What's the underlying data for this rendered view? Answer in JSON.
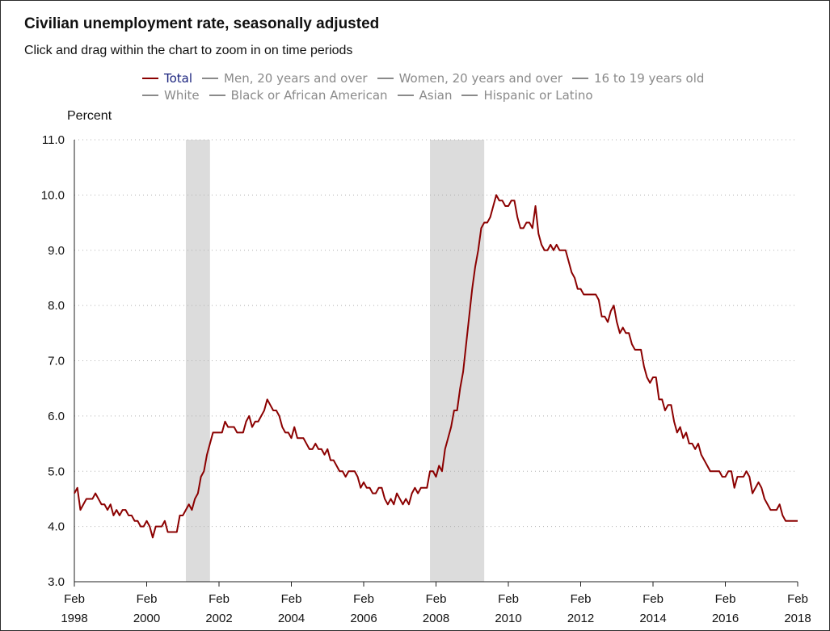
{
  "chart_data": {
    "type": "line",
    "title": "Civilian unemployment rate, seasonally adjusted",
    "subtitle": "Click and drag within the chart to zoom in on time periods",
    "ylabel": "Percent",
    "xlabel": "",
    "ylim": [
      3.0,
      11.0
    ],
    "y_ticks": [
      "3.0",
      "4.0",
      "5.0",
      "6.0",
      "7.0",
      "8.0",
      "9.0",
      "10.0",
      "11.0"
    ],
    "x_ticks": [
      {
        "month": "Feb",
        "year": "1998"
      },
      {
        "month": "Feb",
        "year": "2000"
      },
      {
        "month": "Feb",
        "year": "2002"
      },
      {
        "month": "Feb",
        "year": "2004"
      },
      {
        "month": "Feb",
        "year": "2006"
      },
      {
        "month": "Feb",
        "year": "2008"
      },
      {
        "month": "Feb",
        "year": "2010"
      },
      {
        "month": "Feb",
        "year": "2012"
      },
      {
        "month": "Feb",
        "year": "2014"
      },
      {
        "month": "Feb",
        "year": "2016"
      },
      {
        "month": "Feb",
        "year": "2018"
      }
    ],
    "legend": {
      "row1": [
        {
          "label": "Total",
          "active": true
        },
        {
          "label": "Men, 20 years and over",
          "active": false
        },
        {
          "label": "Women, 20 years and over",
          "active": false
        },
        {
          "label": "16 to 19 years old",
          "active": false
        }
      ],
      "row2": [
        {
          "label": "White",
          "active": false
        },
        {
          "label": "Black or African American",
          "active": false
        },
        {
          "label": "Asian",
          "active": false
        },
        {
          "label": "Hispanic or Latino",
          "active": false
        }
      ]
    },
    "recessions": [
      {
        "start": "2001-03",
        "end": "2001-11"
      },
      {
        "start": "2007-12",
        "end": "2009-06"
      }
    ],
    "series": [
      {
        "name": "Total",
        "color": "#8b0000",
        "start": "1998-02",
        "values": [
          4.6,
          4.7,
          4.3,
          4.4,
          4.5,
          4.5,
          4.5,
          4.6,
          4.5,
          4.4,
          4.4,
          4.3,
          4.4,
          4.2,
          4.3,
          4.2,
          4.3,
          4.3,
          4.2,
          4.2,
          4.1,
          4.1,
          4.0,
          4.0,
          4.1,
          4.0,
          3.8,
          4.0,
          4.0,
          4.0,
          4.1,
          3.9,
          3.9,
          3.9,
          3.9,
          4.2,
          4.2,
          4.3,
          4.4,
          4.3,
          4.5,
          4.6,
          4.9,
          5.0,
          5.3,
          5.5,
          5.7,
          5.7,
          5.7,
          5.7,
          5.9,
          5.8,
          5.8,
          5.8,
          5.7,
          5.7,
          5.7,
          5.9,
          6.0,
          5.8,
          5.9,
          5.9,
          6.0,
          6.1,
          6.3,
          6.2,
          6.1,
          6.1,
          6.0,
          5.8,
          5.7,
          5.7,
          5.6,
          5.8,
          5.6,
          5.6,
          5.6,
          5.5,
          5.4,
          5.4,
          5.5,
          5.4,
          5.4,
          5.3,
          5.4,
          5.2,
          5.2,
          5.1,
          5.0,
          5.0,
          4.9,
          5.0,
          5.0,
          5.0,
          4.9,
          4.7,
          4.8,
          4.7,
          4.7,
          4.6,
          4.6,
          4.7,
          4.7,
          4.5,
          4.4,
          4.5,
          4.4,
          4.6,
          4.5,
          4.4,
          4.5,
          4.4,
          4.6,
          4.7,
          4.6,
          4.7,
          4.7,
          4.7,
          5.0,
          5.0,
          4.9,
          5.1,
          5.0,
          5.4,
          5.6,
          5.8,
          6.1,
          6.1,
          6.5,
          6.8,
          7.3,
          7.8,
          8.3,
          8.7,
          9.0,
          9.4,
          9.5,
          9.5,
          9.6,
          9.8,
          10.0,
          9.9,
          9.9,
          9.8,
          9.8,
          9.9,
          9.9,
          9.6,
          9.4,
          9.4,
          9.5,
          9.5,
          9.4,
          9.8,
          9.3,
          9.1,
          9.0,
          9.0,
          9.1,
          9.0,
          9.1,
          9.0,
          9.0,
          9.0,
          8.8,
          8.6,
          8.5,
          8.3,
          8.3,
          8.2,
          8.2,
          8.2,
          8.2,
          8.2,
          8.1,
          7.8,
          7.8,
          7.7,
          7.9,
          8.0,
          7.7,
          7.5,
          7.6,
          7.5,
          7.5,
          7.3,
          7.2,
          7.2,
          7.2,
          6.9,
          6.7,
          6.6,
          6.7,
          6.7,
          6.3,
          6.3,
          6.1,
          6.2,
          6.2,
          5.9,
          5.7,
          5.8,
          5.6,
          5.7,
          5.5,
          5.5,
          5.4,
          5.5,
          5.3,
          5.2,
          5.1,
          5.0,
          5.0,
          5.0,
          5.0,
          4.9,
          4.9,
          5.0,
          5.0,
          4.7,
          4.9,
          4.9,
          4.9,
          5.0,
          4.9,
          4.6,
          4.7,
          4.8,
          4.7,
          4.5,
          4.4,
          4.3,
          4.3,
          4.3,
          4.4,
          4.2,
          4.1,
          4.1,
          4.1,
          4.1,
          4.1
        ]
      }
    ]
  }
}
